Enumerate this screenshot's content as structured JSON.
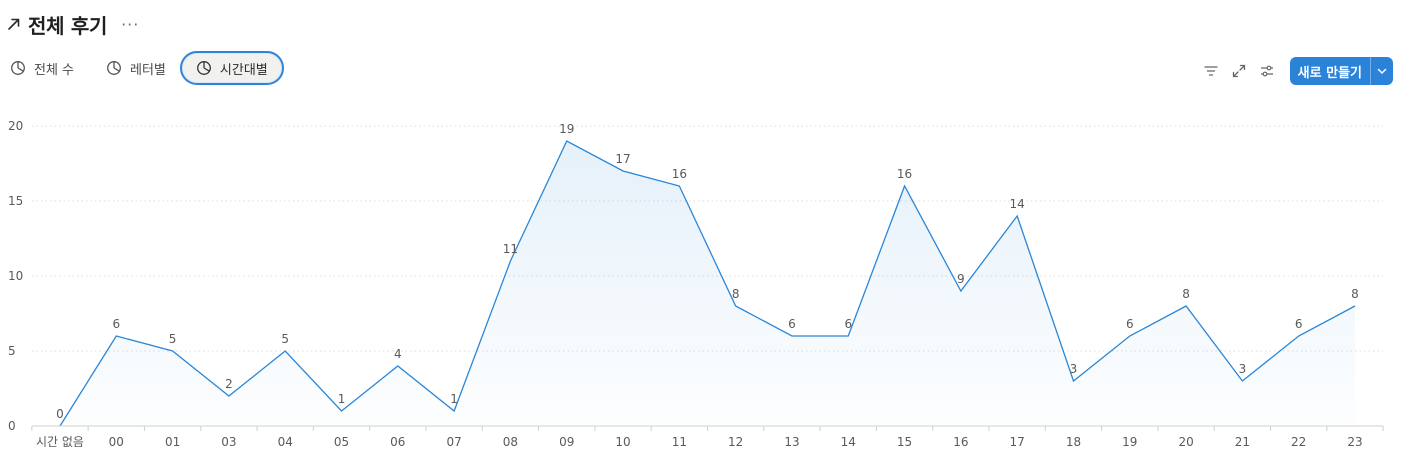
{
  "header": {
    "title": "전체 후기",
    "more": "···"
  },
  "tabs": [
    {
      "label": "전체 수",
      "icon": "pie-chart-icon",
      "active": false
    },
    {
      "label": "레터별",
      "icon": "pie-chart-icon",
      "active": false
    },
    {
      "label": "시간대별",
      "icon": "pie-chart-icon",
      "active": true
    }
  ],
  "toolbar": {
    "icons": [
      "filter-icon",
      "expand-icon",
      "settings-sliders-icon"
    ],
    "new_button_label": "새로 만들기"
  },
  "colors": {
    "accent": "#2b83d9",
    "line": "#2a86d6",
    "grid": "#dcdcdc",
    "text": "#5a5a5a"
  },
  "chart_data": {
    "type": "area",
    "categories": [
      "시간 없음",
      "00",
      "01",
      "03",
      "04",
      "05",
      "06",
      "07",
      "08",
      "09",
      "10",
      "11",
      "12",
      "13",
      "14",
      "15",
      "16",
      "17",
      "18",
      "19",
      "20",
      "21",
      "22",
      "23"
    ],
    "values": [
      0,
      6,
      5,
      2,
      5,
      1,
      4,
      1,
      11,
      19,
      17,
      16,
      8,
      6,
      6,
      16,
      9,
      14,
      3,
      6,
      8,
      3,
      6,
      8
    ],
    "yticks": [
      0,
      5,
      10,
      15,
      20
    ],
    "ylim": [
      0,
      20
    ],
    "grid": "horizontal dotted",
    "data_labels": true
  }
}
